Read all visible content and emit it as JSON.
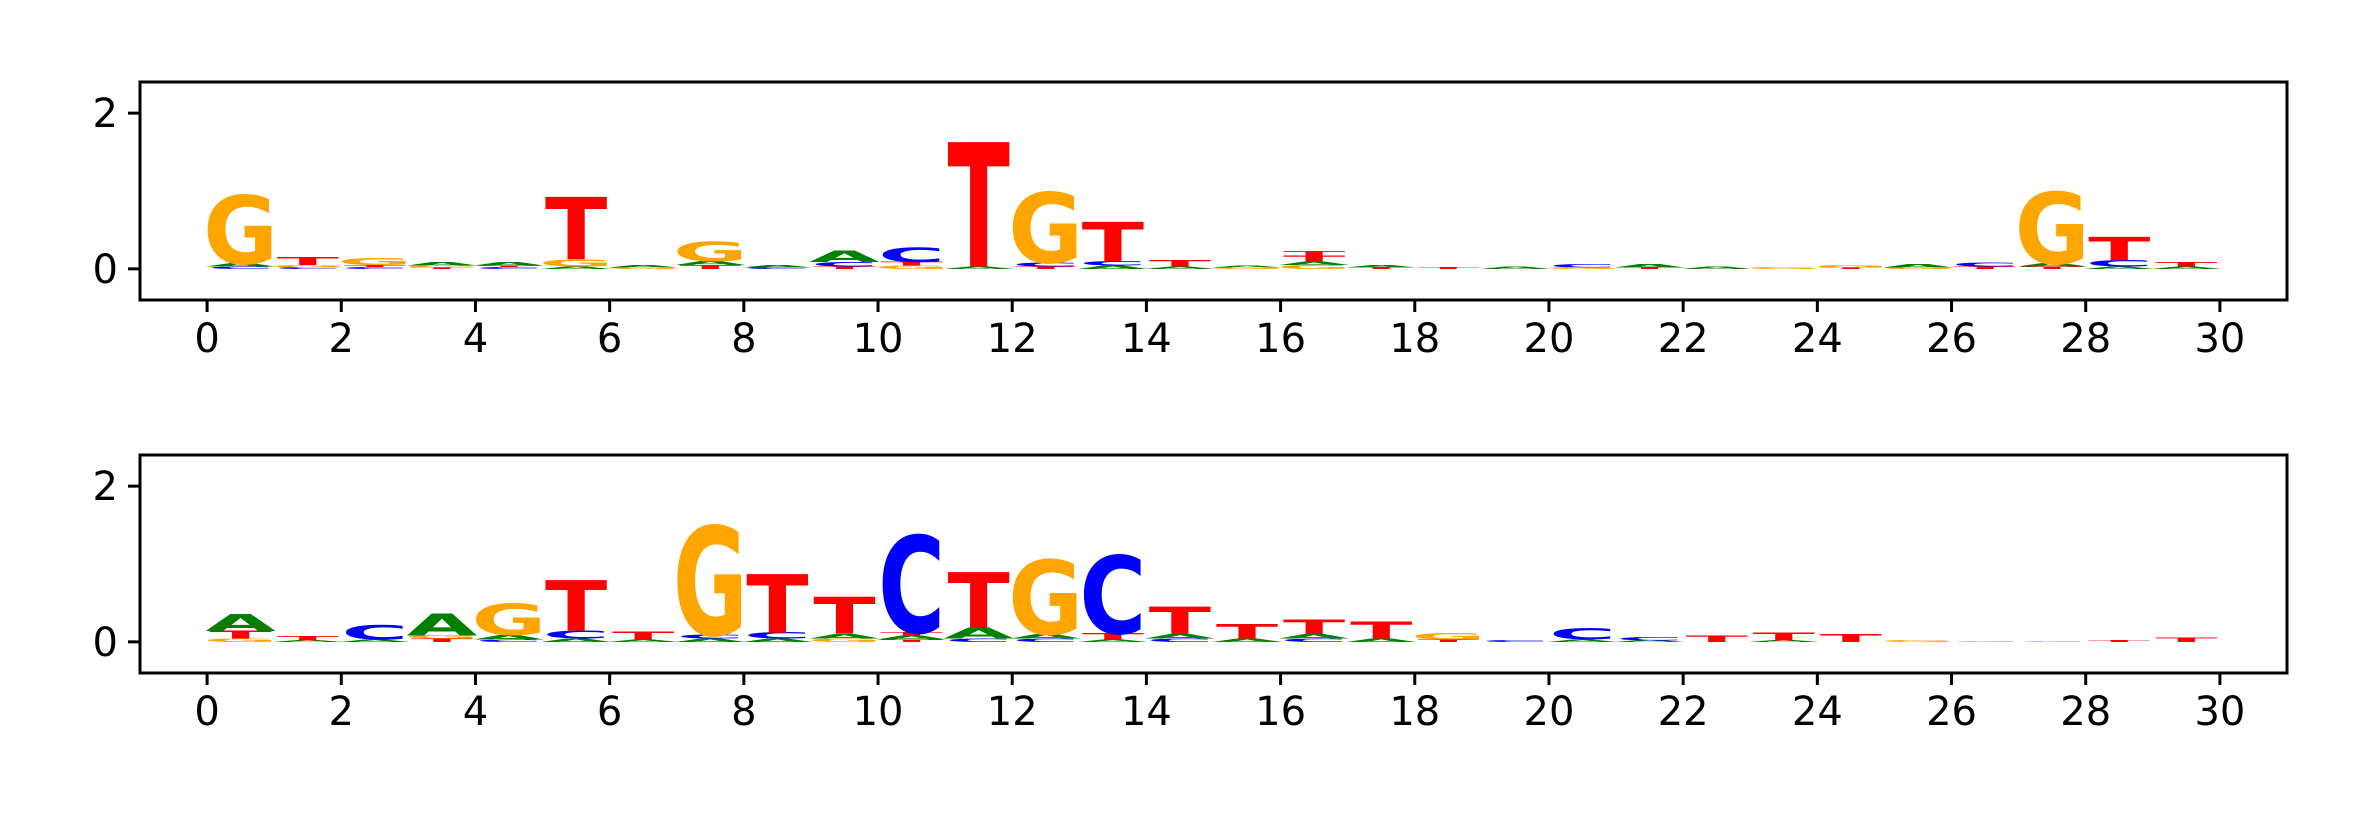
{
  "colors": {
    "A": "#008000",
    "C": "#0000ff",
    "G": "#ffa500",
    "T": "#ff0000"
  },
  "chart_data": [
    {
      "type": "sequence-logo",
      "xlim": [
        -1,
        31
      ],
      "ylim": [
        -0.4,
        2.4
      ],
      "xticks": [
        0,
        2,
        4,
        6,
        8,
        10,
        12,
        14,
        16,
        18,
        20,
        22,
        24,
        26,
        28,
        30
      ],
      "yticks": [
        0,
        2
      ],
      "positions": [
        {
          "x": 0.5,
          "stack": [
            [
              "C",
              0.03
            ],
            [
              "A",
              0.04
            ],
            [
              "G",
              0.88
            ]
          ]
        },
        {
          "x": 1.5,
          "stack": [
            [
              "C",
              0.02
            ],
            [
              "G",
              0.03
            ],
            [
              "T",
              0.1
            ]
          ]
        },
        {
          "x": 2.5,
          "stack": [
            [
              "C",
              0.02
            ],
            [
              "T",
              0.03
            ],
            [
              "G",
              0.09
            ]
          ]
        },
        {
          "x": 3.5,
          "stack": [
            [
              "T",
              0.02
            ],
            [
              "G",
              0.02
            ],
            [
              "A",
              0.04
            ]
          ]
        },
        {
          "x": 4.5,
          "stack": [
            [
              "C",
              0.02
            ],
            [
              "T",
              0.02
            ],
            [
              "A",
              0.04
            ]
          ]
        },
        {
          "x": 5.5,
          "stack": [
            [
              "A",
              0.03
            ],
            [
              "G",
              0.09
            ],
            [
              "T",
              0.8
            ]
          ]
        },
        {
          "x": 6.5,
          "stack": [
            [
              "G",
              0.02
            ],
            [
              "A",
              0.03
            ]
          ]
        },
        {
          "x": 7.5,
          "stack": [
            [
              "T",
              0.05
            ],
            [
              "A",
              0.05
            ],
            [
              "G",
              0.25
            ]
          ]
        },
        {
          "x": 8.5,
          "stack": [
            [
              "C",
              0.02
            ],
            [
              "A",
              0.03
            ]
          ]
        },
        {
          "x": 9.5,
          "stack": [
            [
              "T",
              0.03
            ],
            [
              "C",
              0.06
            ],
            [
              "A",
              0.15
            ]
          ]
        },
        {
          "x": 10.5,
          "stack": [
            [
              "G",
              0.04
            ],
            [
              "T",
              0.05
            ],
            [
              "C",
              0.18
            ]
          ]
        },
        {
          "x": 11.5,
          "stack": [
            [
              "A",
              0.03
            ],
            [
              "T",
              1.6
            ]
          ]
        },
        {
          "x": 12.5,
          "stack": [
            [
              "T",
              0.03
            ],
            [
              "C",
              0.05
            ],
            [
              "G",
              0.9
            ]
          ]
        },
        {
          "x": 13.5,
          "stack": [
            [
              "A",
              0.04
            ],
            [
              "C",
              0.06
            ],
            [
              "T",
              0.5
            ]
          ]
        },
        {
          "x": 14.5,
          "stack": [
            [
              "A",
              0.03
            ],
            [
              "T",
              0.08
            ]
          ]
        },
        {
          "x": 15.5,
          "stack": [
            [
              "G",
              0.02
            ],
            [
              "A",
              0.02
            ]
          ]
        },
        {
          "x": 16.5,
          "stack": [
            [
              "G",
              0.05
            ],
            [
              "A",
              0.04
            ],
            [
              "T",
              0.08
            ],
            [
              "T",
              0.06
            ]
          ]
        },
        {
          "x": 17.5,
          "stack": [
            [
              "T",
              0.02
            ],
            [
              "A",
              0.03
            ]
          ]
        },
        {
          "x": 18.5,
          "stack": [
            [
              "T",
              0.02
            ]
          ]
        },
        {
          "x": 19.5,
          "stack": [
            [
              "A",
              0.03
            ]
          ]
        },
        {
          "x": 20.5,
          "stack": [
            [
              "G",
              0.02
            ],
            [
              "C",
              0.04
            ]
          ]
        },
        {
          "x": 21.5,
          "stack": [
            [
              "T",
              0.02
            ],
            [
              "A",
              0.04
            ]
          ]
        },
        {
          "x": 22.5,
          "stack": [
            [
              "A",
              0.03
            ]
          ]
        },
        {
          "x": 23.5,
          "stack": [
            [
              "G",
              0.02
            ]
          ]
        },
        {
          "x": 24.5,
          "stack": [
            [
              "T",
              0.02
            ],
            [
              "G",
              0.03
            ]
          ]
        },
        {
          "x": 25.5,
          "stack": [
            [
              "G",
              0.02
            ],
            [
              "A",
              0.04
            ]
          ]
        },
        {
          "x": 26.5,
          "stack": [
            [
              "T",
              0.03
            ],
            [
              "C",
              0.05
            ]
          ]
        },
        {
          "x": 27.5,
          "stack": [
            [
              "T",
              0.03
            ],
            [
              "A",
              0.04
            ],
            [
              "G",
              0.92
            ]
          ]
        },
        {
          "x": 28.5,
          "stack": [
            [
              "A",
              0.03
            ],
            [
              "C",
              0.08
            ],
            [
              "T",
              0.3
            ]
          ]
        },
        {
          "x": 29.5,
          "stack": [
            [
              "A",
              0.03
            ],
            [
              "T",
              0.06
            ]
          ]
        }
      ]
    },
    {
      "type": "sequence-logo",
      "xlim": [
        -1,
        31
      ],
      "ylim": [
        -0.4,
        2.4
      ],
      "xticks": [
        0,
        2,
        4,
        6,
        8,
        10,
        12,
        14,
        16,
        18,
        20,
        22,
        24,
        26,
        28,
        30
      ],
      "yticks": [
        0,
        2
      ],
      "positions": [
        {
          "x": 0.5,
          "stack": [
            [
              "G",
              0.04
            ],
            [
              "T",
              0.1
            ],
            [
              "A",
              0.22
            ]
          ]
        },
        {
          "x": 1.5,
          "stack": [
            [
              "A",
              0.02
            ],
            [
              "T",
              0.06
            ]
          ]
        },
        {
          "x": 2.5,
          "stack": [
            [
              "A",
              0.03
            ],
            [
              "C",
              0.18
            ]
          ]
        },
        {
          "x": 3.5,
          "stack": [
            [
              "T",
              0.04
            ],
            [
              "G",
              0.04
            ],
            [
              "A",
              0.28
            ]
          ]
        },
        {
          "x": 4.5,
          "stack": [
            [
              "C",
              0.03
            ],
            [
              "A",
              0.06
            ],
            [
              "G",
              0.4
            ]
          ]
        },
        {
          "x": 5.5,
          "stack": [
            [
              "A",
              0.04
            ],
            [
              "C",
              0.1
            ],
            [
              "T",
              0.65
            ]
          ]
        },
        {
          "x": 6.5,
          "stack": [
            [
              "A",
              0.03
            ],
            [
              "T",
              0.1
            ]
          ]
        },
        {
          "x": 7.5,
          "stack": [
            [
              "A",
              0.04
            ],
            [
              "C",
              0.05
            ],
            [
              "G",
              1.4
            ]
          ]
        },
        {
          "x": 8.5,
          "stack": [
            [
              "A",
              0.04
            ],
            [
              "C",
              0.08
            ],
            [
              "T",
              0.75
            ]
          ]
        },
        {
          "x": 9.5,
          "stack": [
            [
              "G",
              0.04
            ],
            [
              "A",
              0.06
            ],
            [
              "T",
              0.48
            ]
          ]
        },
        {
          "x": 10.5,
          "stack": [
            [
              "T",
              0.03
            ],
            [
              "A",
              0.05
            ],
            [
              "T",
              0.04
            ],
            [
              "C",
              1.25
            ]
          ]
        },
        {
          "x": 11.5,
          "stack": [
            [
              "C",
              0.04
            ],
            [
              "A",
              0.14
            ],
            [
              "T",
              0.72
            ]
          ]
        },
        {
          "x": 12.5,
          "stack": [
            [
              "C",
              0.04
            ],
            [
              "A",
              0.06
            ],
            [
              "G",
              0.95
            ]
          ]
        },
        {
          "x": 13.5,
          "stack": [
            [
              "A",
              0.03
            ],
            [
              "T",
              0.08
            ],
            [
              "C",
              1.0
            ]
          ]
        },
        {
          "x": 14.5,
          "stack": [
            [
              "C",
              0.04
            ],
            [
              "A",
              0.06
            ],
            [
              "T",
              0.35
            ]
          ]
        },
        {
          "x": 15.5,
          "stack": [
            [
              "A",
              0.04
            ],
            [
              "T",
              0.18
            ]
          ]
        },
        {
          "x": 16.5,
          "stack": [
            [
              "C",
              0.04
            ],
            [
              "A",
              0.06
            ],
            [
              "T",
              0.18
            ]
          ]
        },
        {
          "x": 17.5,
          "stack": [
            [
              "A",
              0.04
            ],
            [
              "T",
              0.22
            ]
          ]
        },
        {
          "x": 18.5,
          "stack": [
            [
              "T",
              0.03
            ],
            [
              "G",
              0.08
            ]
          ]
        },
        {
          "x": 19.5,
          "stack": [
            [
              "C",
              0.02
            ]
          ]
        },
        {
          "x": 20.5,
          "stack": [
            [
              "A",
              0.03
            ],
            [
              "C",
              0.15
            ]
          ]
        },
        {
          "x": 21.5,
          "stack": [
            [
              "A",
              0.02
            ],
            [
              "C",
              0.04
            ]
          ]
        },
        {
          "x": 22.5,
          "stack": [
            [
              "T",
              0.08
            ]
          ]
        },
        {
          "x": 23.5,
          "stack": [
            [
              "A",
              0.02
            ],
            [
              "T",
              0.1
            ]
          ]
        },
        {
          "x": 24.5,
          "stack": [
            [
              "T",
              0.1
            ]
          ]
        },
        {
          "x": 25.5,
          "stack": [
            [
              "G",
              0.02
            ]
          ]
        },
        {
          "x": 26.5,
          "stack": [
            [
              "C",
              0.01
            ]
          ]
        },
        {
          "x": 27.5,
          "stack": [
            [
              "C",
              0.01
            ]
          ]
        },
        {
          "x": 28.5,
          "stack": [
            [
              "T",
              0.02
            ]
          ]
        },
        {
          "x": 29.5,
          "stack": [
            [
              "T",
              0.06
            ]
          ]
        }
      ]
    }
  ]
}
